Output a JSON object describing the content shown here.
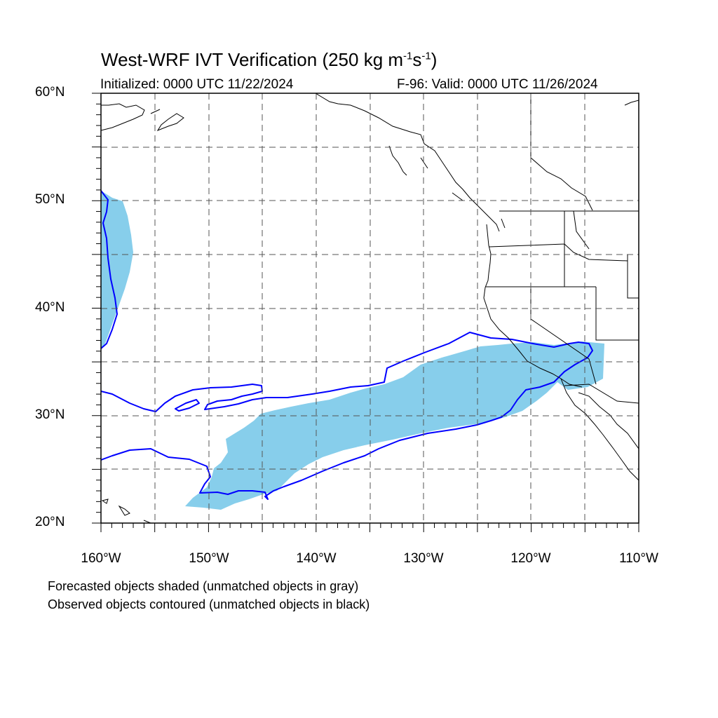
{
  "map": {
    "title_main": "West-WRF IVT Verification (250 kg m",
    "title_exp1": "-1",
    "title_mid": "s",
    "title_exp2": "-1",
    "title_end": ")",
    "initialized": "Initialized: 0000 UTC 11/22/2024",
    "valid": "F-96: Valid: 0000 UTC 11/26/2024",
    "extent": {
      "lon": [
        -160,
        -110
      ],
      "lat": [
        20,
        60
      ]
    },
    "lat_ticks": [
      "20°N",
      "30°N",
      "40°N",
      "50°N",
      "60°N"
    ],
    "lon_ticks": [
      "160°W",
      "150°W",
      "140°W",
      "130°W",
      "120°W",
      "110°W"
    ],
    "grid": "dashed, every 5 degrees",
    "colors": {
      "forecast_fill": "#87ceeb",
      "observed_contour": "#0000ff",
      "coastline": "#000000",
      "grid": "#555555"
    },
    "legend": {
      "line1": "Forecasted objects shaded (unmatched objects in gray)",
      "line2": "Observed objects contoured (unmatched objects in black)"
    }
  }
}
